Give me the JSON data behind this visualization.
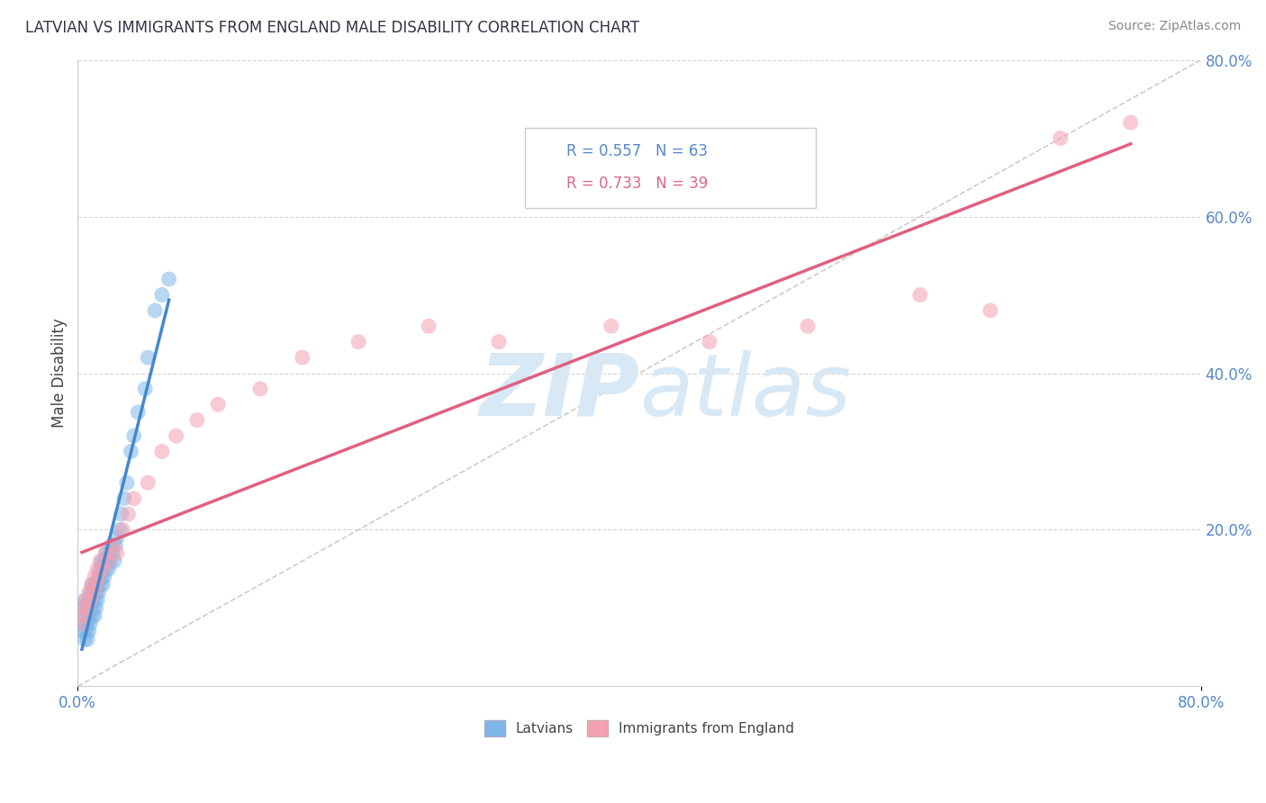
{
  "title": "LATVIAN VS IMMIGRANTS FROM ENGLAND MALE DISABILITY CORRELATION CHART",
  "source_text": "Source: ZipAtlas.com",
  "ylabel": "Male Disability",
  "xlim": [
    0.0,
    0.8
  ],
  "ylim": [
    0.0,
    0.8
  ],
  "xtick_positions": [
    0.0,
    0.8
  ],
  "xtick_labels": [
    "0.0%",
    "80.0%"
  ],
  "ytick_positions": [
    0.2,
    0.4,
    0.6,
    0.8
  ],
  "ytick_labels": [
    "20.0%",
    "40.0%",
    "60.0%",
    "80.0%"
  ],
  "grid_color": "#cccccc",
  "background_color": "#ffffff",
  "latvian_color": "#7eb6e8",
  "england_color": "#f4a0b0",
  "latvian_R": 0.557,
  "latvian_N": 63,
  "england_R": 0.733,
  "england_N": 39,
  "latvian_line_color": "#4488cc",
  "england_line_color": "#e06080",
  "diagonal_color": "#aaaaaa",
  "watermark_color": "#d8e8f5",
  "legend_label_latvians": "Latvians",
  "legend_label_england": "Immigrants from England",
  "latvian_x": [
    0.003,
    0.004,
    0.004,
    0.005,
    0.005,
    0.005,
    0.006,
    0.006,
    0.006,
    0.007,
    0.007,
    0.007,
    0.008,
    0.008,
    0.008,
    0.009,
    0.009,
    0.009,
    0.01,
    0.01,
    0.01,
    0.011,
    0.011,
    0.012,
    0.012,
    0.012,
    0.013,
    0.013,
    0.014,
    0.014,
    0.015,
    0.015,
    0.016,
    0.016,
    0.017,
    0.017,
    0.018,
    0.018,
    0.019,
    0.019,
    0.02,
    0.02,
    0.021,
    0.022,
    0.022,
    0.023,
    0.024,
    0.025,
    0.026,
    0.027,
    0.028,
    0.03,
    0.031,
    0.033,
    0.035,
    0.038,
    0.04,
    0.043,
    0.048,
    0.05,
    0.055,
    0.06,
    0.065
  ],
  "latvian_y": [
    0.08,
    0.1,
    0.07,
    0.06,
    0.09,
    0.11,
    0.07,
    0.08,
    0.1,
    0.06,
    0.08,
    0.1,
    0.07,
    0.09,
    0.11,
    0.08,
    0.1,
    0.12,
    0.09,
    0.11,
    0.13,
    0.1,
    0.12,
    0.09,
    0.11,
    0.13,
    0.1,
    0.12,
    0.11,
    0.13,
    0.12,
    0.14,
    0.13,
    0.15,
    0.14,
    0.16,
    0.13,
    0.15,
    0.14,
    0.16,
    0.15,
    0.17,
    0.16,
    0.15,
    0.17,
    0.16,
    0.18,
    0.17,
    0.16,
    0.18,
    0.19,
    0.2,
    0.22,
    0.24,
    0.26,
    0.3,
    0.32,
    0.35,
    0.38,
    0.42,
    0.48,
    0.5,
    0.52
  ],
  "england_x": [
    0.003,
    0.004,
    0.005,
    0.006,
    0.007,
    0.008,
    0.009,
    0.01,
    0.011,
    0.012,
    0.013,
    0.014,
    0.015,
    0.016,
    0.018,
    0.02,
    0.022,
    0.025,
    0.028,
    0.032,
    0.036,
    0.04,
    0.05,
    0.06,
    0.07,
    0.085,
    0.1,
    0.13,
    0.16,
    0.2,
    0.25,
    0.3,
    0.38,
    0.45,
    0.52,
    0.6,
    0.65,
    0.7,
    0.75
  ],
  "england_y": [
    0.08,
    0.1,
    0.09,
    0.11,
    0.1,
    0.12,
    0.11,
    0.13,
    0.12,
    0.14,
    0.13,
    0.15,
    0.14,
    0.16,
    0.15,
    0.17,
    0.16,
    0.18,
    0.17,
    0.2,
    0.22,
    0.24,
    0.26,
    0.3,
    0.32,
    0.34,
    0.36,
    0.38,
    0.42,
    0.44,
    0.46,
    0.44,
    0.46,
    0.44,
    0.46,
    0.5,
    0.48,
    0.7,
    0.72
  ]
}
